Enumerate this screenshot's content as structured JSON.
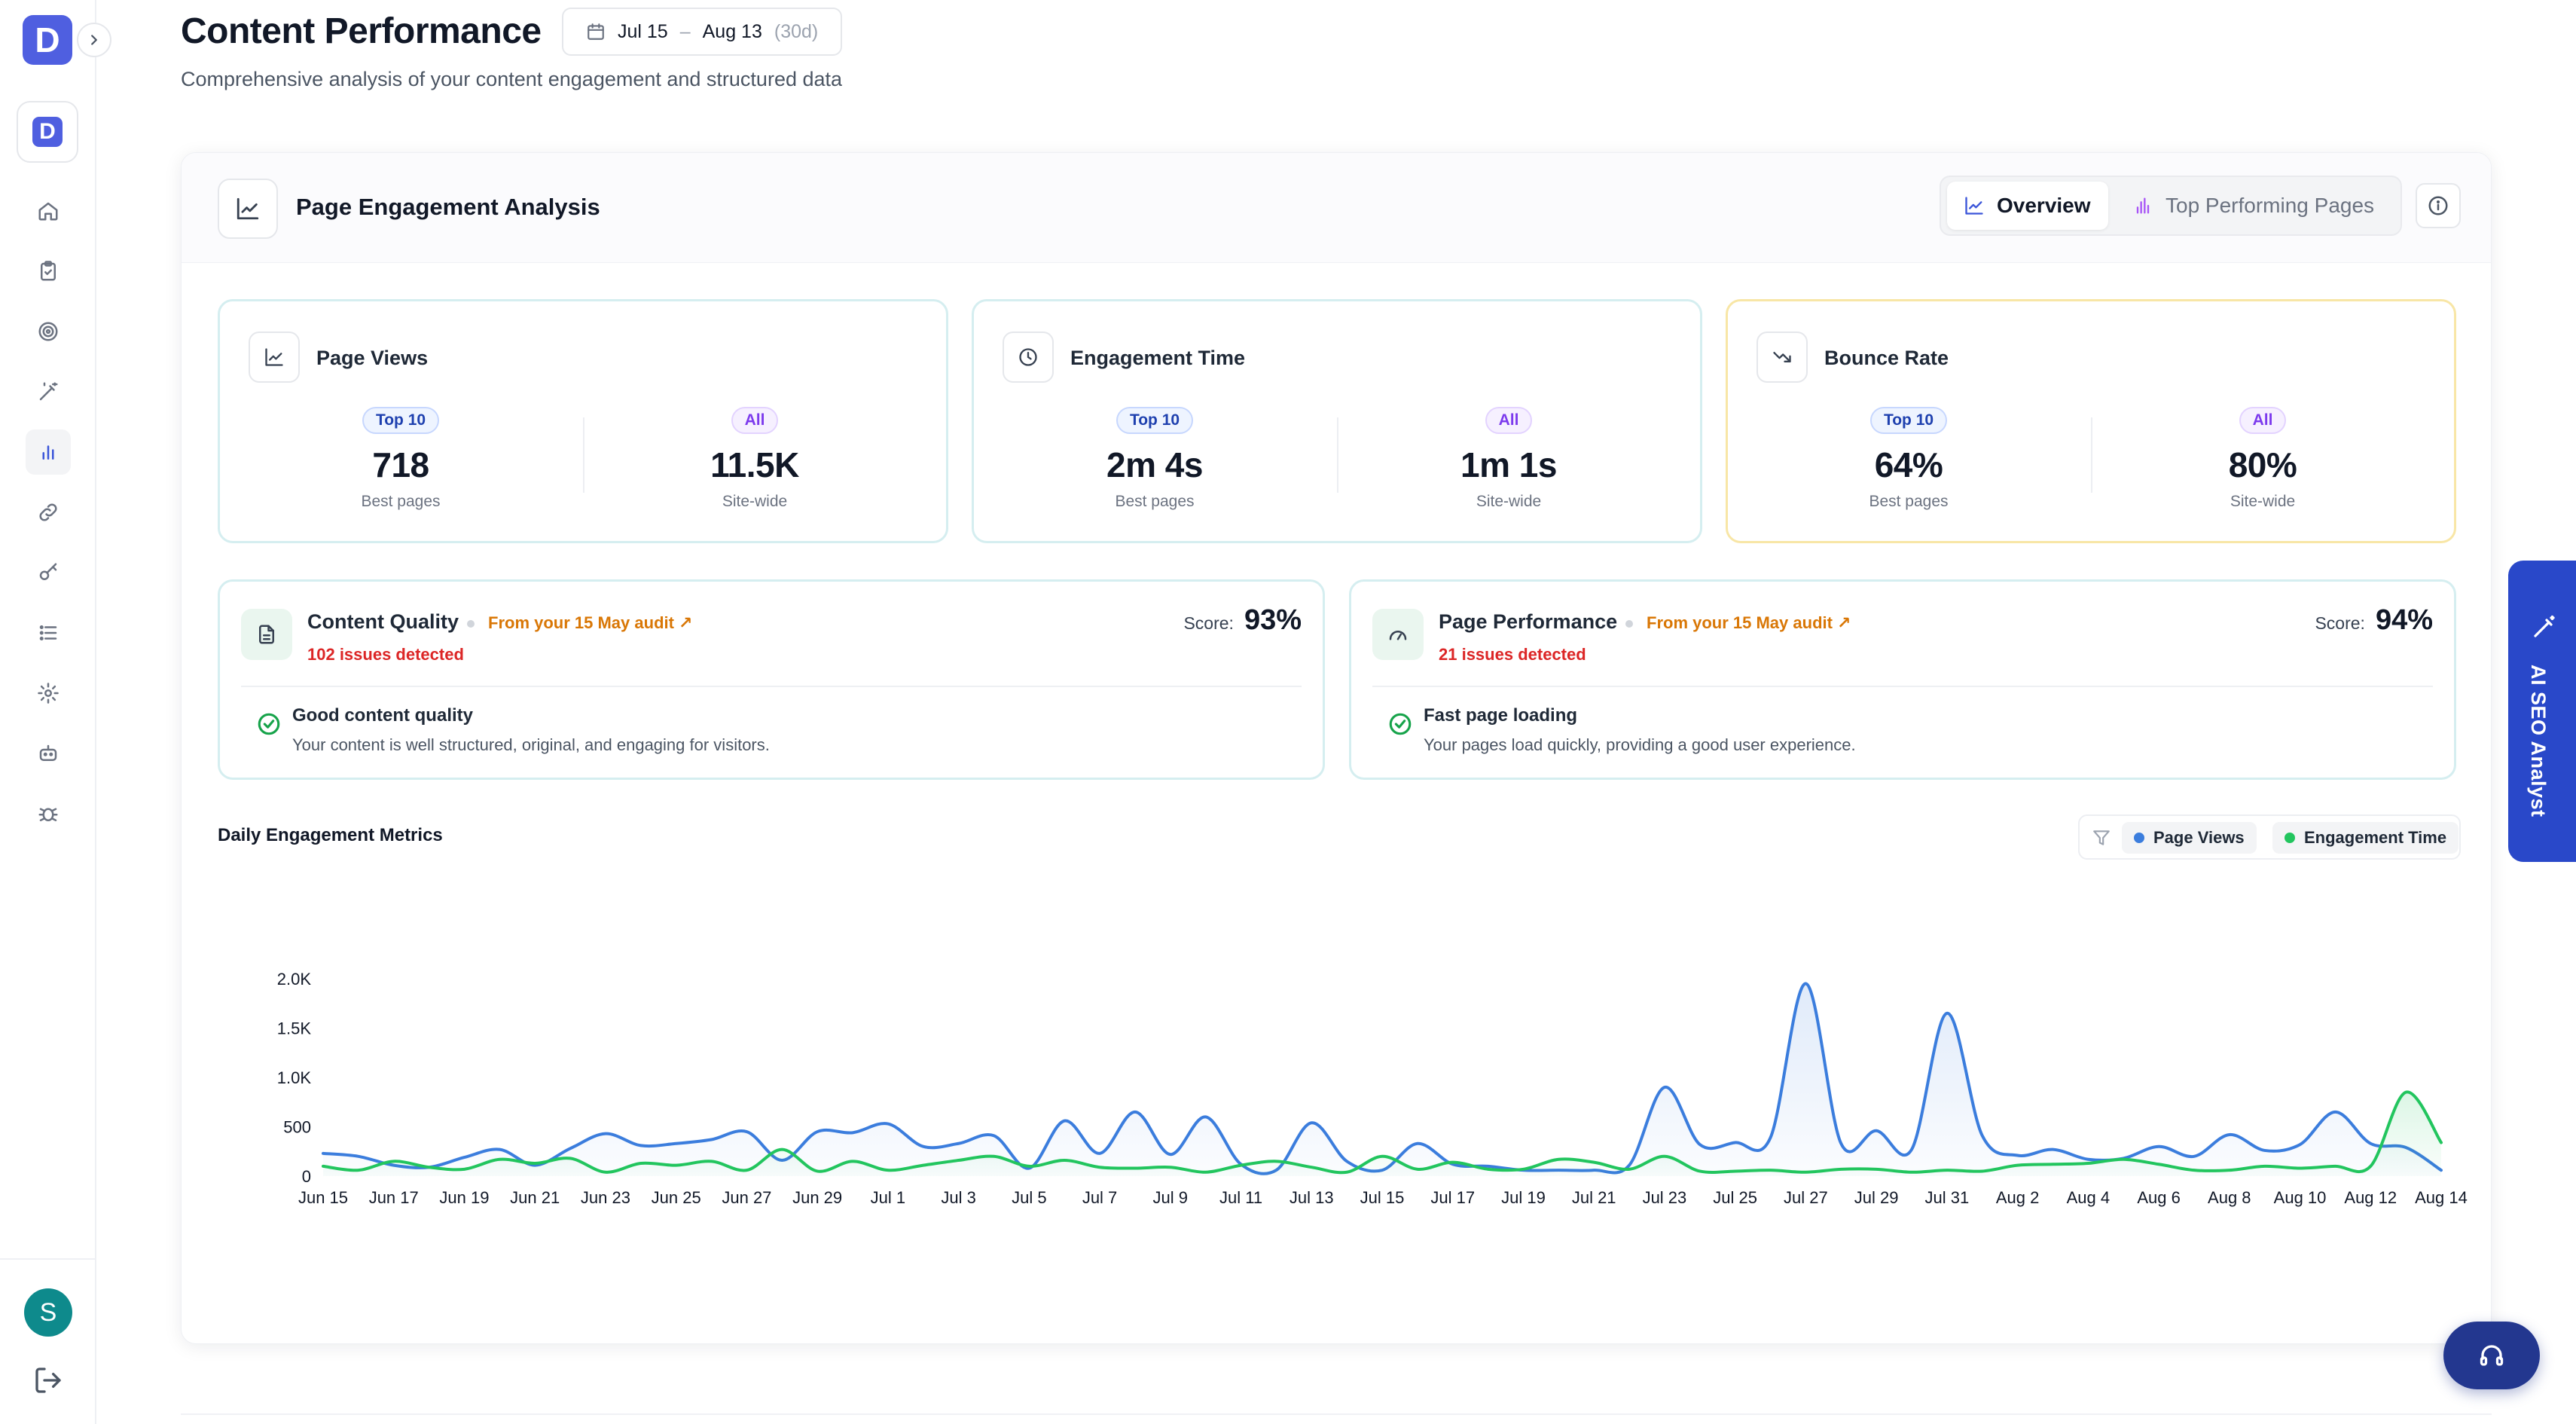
{
  "header": {
    "title": "Content Performance",
    "subtitle": "Comprehensive analysis of your content engagement and structured data",
    "date_range": {
      "start": "Jul 15",
      "separator": "–",
      "end": "Aug 13",
      "days": "(30d)"
    }
  },
  "sidebar": {
    "brand_letter": "D",
    "workspace_letter": "D",
    "items": [
      {
        "name": "home-icon"
      },
      {
        "name": "clipboard-check-icon"
      },
      {
        "name": "target-icon"
      },
      {
        "name": "magic-wand-icon"
      },
      {
        "name": "bar-chart-icon",
        "active": true
      },
      {
        "name": "link-icon"
      },
      {
        "name": "key-icon"
      },
      {
        "name": "list-icon"
      },
      {
        "name": "settings-icon"
      },
      {
        "name": "bot-icon"
      },
      {
        "name": "bug-icon"
      }
    ],
    "avatar_letter": "S"
  },
  "card": {
    "title": "Page Engagement Analysis",
    "tabs": [
      {
        "label": "Overview",
        "active": true
      },
      {
        "label": "Top Performing Pages",
        "active": false
      }
    ]
  },
  "metrics": [
    {
      "title": "Page Views",
      "left_badge": "Top 10",
      "left_value": "718",
      "left_sub": "Best pages",
      "right_badge": "All",
      "right_value": "11.5K",
      "right_sub": "Site-wide"
    },
    {
      "title": "Engagement Time",
      "left_badge": "Top 10",
      "left_value": "2m 4s",
      "left_sub": "Best pages",
      "right_badge": "All",
      "right_value": "1m 1s",
      "right_sub": "Site-wide"
    },
    {
      "title": "Bounce Rate",
      "left_badge": "Top 10",
      "left_value": "64%",
      "left_sub": "Best pages",
      "right_badge": "All",
      "right_value": "80%",
      "right_sub": "Site-wide"
    }
  ],
  "audits": [
    {
      "title": "Content Quality",
      "from": "From your 15 May audit ↗",
      "issues": "102 issues detected",
      "score_label": "Score:",
      "score": "93%",
      "status_title": "Good content quality",
      "status_desc": "Your content is well structured, original, and engaging for visitors."
    },
    {
      "title": "Page Performance",
      "from": "From your 15 May audit ↗",
      "issues": "21 issues detected",
      "score_label": "Score:",
      "score": "94%",
      "status_title": "Fast page loading",
      "status_desc": "Your pages load quickly, providing a good user experience."
    }
  ],
  "floating": {
    "ai_tab": "AI SEO Analyst"
  },
  "colors": {
    "accent": "#4f5fe0",
    "page_views": "#3b7ddd",
    "engagement": "#22c55e",
    "warning": "#d97706",
    "danger": "#dc2626"
  },
  "chart_data": {
    "type": "line",
    "title": "Daily Engagement Metrics",
    "xlabel": "",
    "ylabel": "",
    "ylim": [
      0,
      2000
    ],
    "yticks": [
      "0",
      "500",
      "1.0K",
      "1.5K",
      "2.0K"
    ],
    "grid": false,
    "legend": "top-right",
    "x": [
      "Jun 15",
      "Jun 16",
      "Jun 17",
      "Jun 18",
      "Jun 19",
      "Jun 20",
      "Jun 21",
      "Jun 22",
      "Jun 23",
      "Jun 24",
      "Jun 25",
      "Jun 26",
      "Jun 27",
      "Jun 28",
      "Jun 29",
      "Jun 30",
      "Jul 1",
      "Jul 2",
      "Jul 3",
      "Jul 4",
      "Jul 5",
      "Jul 6",
      "Jul 7",
      "Jul 8",
      "Jul 9",
      "Jul 10",
      "Jul 11",
      "Jul 12",
      "Jul 13",
      "Jul 14",
      "Jul 15",
      "Jul 16",
      "Jul 17",
      "Jul 18",
      "Jul 19",
      "Jul 20",
      "Jul 21",
      "Jul 22",
      "Jul 23",
      "Jul 24",
      "Jul 25",
      "Jul 26",
      "Jul 27",
      "Jul 28",
      "Jul 29",
      "Jul 30",
      "Jul 31",
      "Aug 1",
      "Aug 2",
      "Aug 3",
      "Aug 4",
      "Aug 5",
      "Aug 6",
      "Aug 7",
      "Aug 8",
      "Aug 9",
      "Aug 10",
      "Aug 11",
      "Aug 12",
      "Aug 13",
      "Aug 14"
    ],
    "tick_labels": [
      "Jun 15",
      "Jun 17",
      "Jun 19",
      "Jun 21",
      "Jun 23",
      "Jun 25",
      "Jun 27",
      "Jun 29",
      "Jul 1",
      "Jul 3",
      "Jul 5",
      "Jul 7",
      "Jul 9",
      "Jul 11",
      "Jul 13",
      "Jul 15",
      "Jul 17",
      "Jul 19",
      "Jul 21",
      "Jul 23",
      "Jul 25",
      "Jul 27",
      "Jul 29",
      "Jul 31",
      "Aug 2",
      "Aug 4",
      "Aug 6",
      "Aug 8",
      "Aug 10",
      "Aug 12",
      "Aug 14"
    ],
    "series": [
      {
        "name": "Page Views",
        "color": "#3b7ddd",
        "values": [
          230,
          200,
          110,
          90,
          190,
          270,
          110,
          280,
          430,
          310,
          330,
          370,
          450,
          160,
          450,
          440,
          530,
          300,
          330,
          410,
          80,
          560,
          230,
          650,
          220,
          600,
          120,
          60,
          540,
          150,
          60,
          330,
          120,
          100,
          60,
          60,
          60,
          110,
          900,
          320,
          340,
          390,
          1950,
          330,
          460,
          270,
          1650,
          410,
          210,
          270,
          170,
          180,
          300,
          200,
          420,
          260,
          320,
          650,
          330,
          290,
          60
        ]
      },
      {
        "name": "Engagement Time",
        "color": "#22c55e",
        "values": [
          100,
          60,
          150,
          90,
          70,
          170,
          130,
          180,
          40,
          130,
          110,
          150,
          60,
          270,
          50,
          150,
          60,
          110,
          160,
          200,
          100,
          160,
          90,
          80,
          90,
          40,
          110,
          150,
          90,
          40,
          200,
          70,
          140,
          70,
          70,
          170,
          140,
          70,
          200,
          50,
          50,
          60,
          40,
          70,
          70,
          40,
          60,
          50,
          110,
          120,
          130,
          170,
          120,
          60,
          60,
          100,
          80,
          100,
          100,
          850,
          340
        ]
      }
    ]
  }
}
